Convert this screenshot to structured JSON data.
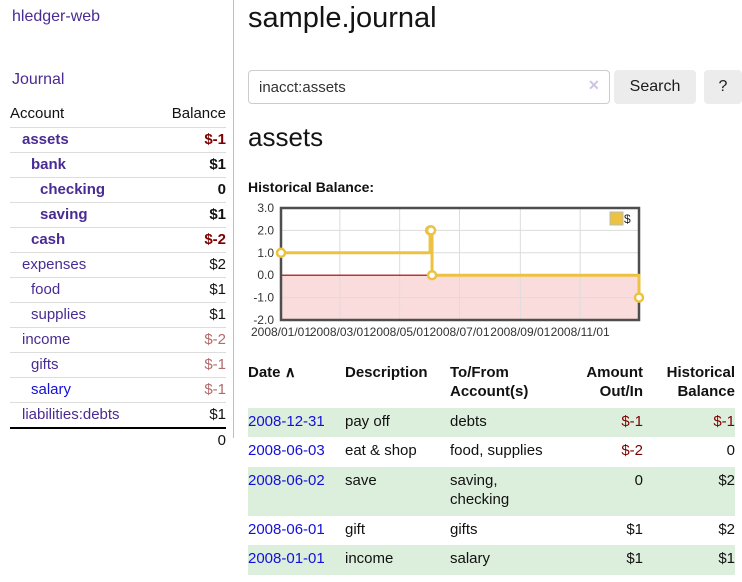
{
  "colors": {
    "link_visited_purple": "#4a2b93",
    "link_unvisited_blue": "#1510d8",
    "negative_strong": "#7d0000",
    "negative_soft": "#b36a6a",
    "row_stripe_green": "#dceedc",
    "series_yellow": "#edc240",
    "chart_negative_region": "#fbdcdc",
    "chart_zero_line": "#a40000",
    "chart_border": "#4e4e4e",
    "chart_grid": "#dcdcdc"
  },
  "sidebar": {
    "app_title": "hledger-web",
    "journal_link": "Journal",
    "accounts_table": {
      "headers": {
        "account": "Account",
        "balance": "Balance"
      },
      "rows": [
        {
          "account": "assets",
          "balance": "$-1",
          "indent": 1,
          "bold": true,
          "link_color": "purple",
          "balance_color": "neg-strong"
        },
        {
          "account": "bank",
          "balance": "$1",
          "indent": 2,
          "bold": true,
          "link_color": "purple",
          "balance_color": ""
        },
        {
          "account": "checking",
          "balance": "0",
          "indent": 3,
          "bold": true,
          "link_color": "purple",
          "balance_color": ""
        },
        {
          "account": "saving",
          "balance": "$1",
          "indent": 3,
          "bold": true,
          "link_color": "purple",
          "balance_color": ""
        },
        {
          "account": "cash",
          "balance": "$-2",
          "indent": 2,
          "bold": true,
          "link_color": "purple",
          "balance_color": "neg-strong"
        },
        {
          "account": "expenses",
          "balance": "$2",
          "indent": 1,
          "bold": false,
          "link_color": "purple",
          "balance_color": ""
        },
        {
          "account": "food",
          "balance": "$1",
          "indent": 2,
          "bold": false,
          "link_color": "purple",
          "balance_color": ""
        },
        {
          "account": "supplies",
          "balance": "$1",
          "indent": 2,
          "bold": false,
          "link_color": "purple",
          "balance_color": ""
        },
        {
          "account": "income",
          "balance": "$-2",
          "indent": 1,
          "bold": false,
          "link_color": "purple",
          "balance_color": "neg-soft"
        },
        {
          "account": "gifts",
          "balance": "$-1",
          "indent": 2,
          "bold": false,
          "link_color": "purple",
          "balance_color": "neg-soft"
        },
        {
          "account": "salary",
          "balance": "$-1",
          "indent": 2,
          "bold": false,
          "link_color": "blue",
          "balance_color": "neg-soft"
        },
        {
          "account": "liabilities:debts",
          "balance": "$1",
          "indent": 1,
          "bold": false,
          "link_color": "purple",
          "balance_color": ""
        }
      ],
      "total": "0"
    }
  },
  "header": {
    "title": "sample.journal"
  },
  "search": {
    "value": "inacct:assets",
    "clear_icon": "✕",
    "search_label": "Search",
    "help_label": "?"
  },
  "account_page": {
    "title": "assets",
    "chart_label": "Historical Balance:"
  },
  "chart_data": {
    "type": "line",
    "title": "Historical Balance:",
    "legend": "$",
    "legend_position": "top-right",
    "grid": true,
    "step": true,
    "xlim": [
      "2008-01-01",
      "2008-12-31"
    ],
    "ylim": [
      -2,
      3
    ],
    "y_ticks": [
      "3.0",
      "2.0",
      "1.0",
      "0.0",
      "-1.0",
      "-2.0"
    ],
    "y_tick_values": [
      3,
      2,
      1,
      0,
      -1,
      -2
    ],
    "x_ticks": [
      "2008/01/01",
      "2008/03/01",
      "2008/05/01",
      "2008/07/01",
      "2008/09/01",
      "2008/11/01"
    ],
    "x_tick_dates": [
      "2008-01-01",
      "2008-03-01",
      "2008-05-01",
      "2008-07-01",
      "2008-09-01",
      "2008-11-01"
    ],
    "series": [
      {
        "name": "$",
        "points": [
          [
            "2008-01-01",
            1
          ],
          [
            "2008-06-01",
            2
          ],
          [
            "2008-06-02",
            2
          ],
          [
            "2008-06-03",
            0
          ],
          [
            "2008-12-31",
            -1
          ]
        ]
      }
    ]
  },
  "register_table": {
    "headers": {
      "date": "Date",
      "sort_arrow": "∧",
      "description": "Description",
      "accounts": "To/From Account(s)",
      "amount": "Amount Out/In",
      "balance": "Historical Balance"
    },
    "rows": [
      {
        "date": "2008-12-31",
        "description": "pay off",
        "accounts": "debts",
        "amount": "$-1",
        "amount_neg": true,
        "balance": "$-1",
        "balance_neg": true
      },
      {
        "date": "2008-06-03",
        "description": "eat & shop",
        "accounts": "food, supplies",
        "amount": "$-2",
        "amount_neg": true,
        "balance": "0",
        "balance_neg": false
      },
      {
        "date": "2008-06-02",
        "description": "save",
        "accounts": "saving, checking",
        "amount": "0",
        "amount_neg": false,
        "balance": "$2",
        "balance_neg": false
      },
      {
        "date": "2008-06-01",
        "description": "gift",
        "accounts": "gifts",
        "amount": "$1",
        "amount_neg": false,
        "balance": "$2",
        "balance_neg": false
      },
      {
        "date": "2008-01-01",
        "description": "income",
        "accounts": "salary",
        "amount": "$1",
        "amount_neg": false,
        "balance": "$1",
        "balance_neg": false
      }
    ]
  }
}
